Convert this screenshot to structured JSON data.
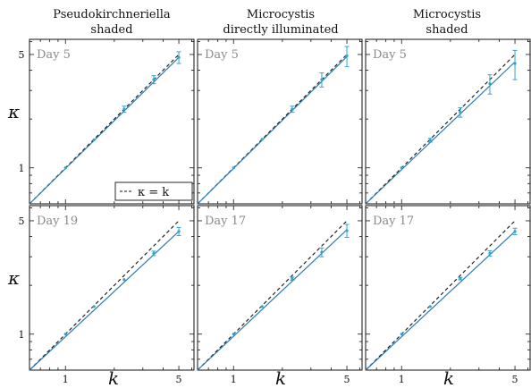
{
  "figure": {
    "column_titles": [
      [
        "Pseudokirchneriella",
        "shaded"
      ],
      [
        "Microcystis",
        "directly illuminated"
      ],
      [
        "Microcystis",
        "shaded"
      ]
    ],
    "xlabel": "k",
    "ylabel": "κ",
    "legend": {
      "label": "κ = k"
    }
  },
  "colors": {
    "fit_line": "#2a7ab5",
    "data_points": "#35a3cf",
    "reference_line": "#111111",
    "day_label": "#8a8a8a"
  },
  "chart_data": [
    {
      "type": "line",
      "panel": "top-left",
      "day_label": "Day 5",
      "x_scale": "log",
      "y_scale": "log",
      "xlim": [
        0.6,
        6.2
      ],
      "ylim": [
        0.6,
        6.2
      ],
      "xticks": [
        1,
        5
      ],
      "yticks": [
        1,
        5
      ],
      "reference_line": {
        "label": "κ = k",
        "x": [
          0.6,
          5
        ],
        "y": [
          0.6,
          5
        ]
      },
      "fit_line": {
        "x": [
          0.6,
          5
        ],
        "y": [
          0.6,
          4.8
        ]
      },
      "points": [
        {
          "x": 1,
          "y": 1.0,
          "err": 0.01
        },
        {
          "x": 1.5,
          "y": 1.49,
          "err": 0.02
        },
        {
          "x": 2.3,
          "y": 2.3,
          "err": 0.1
        },
        {
          "x": 3.5,
          "y": 3.5,
          "err": 0.2
        },
        {
          "x": 5,
          "y": 4.8,
          "err": 0.4
        }
      ],
      "legend_position": "bottom-right"
    },
    {
      "type": "line",
      "panel": "top-middle",
      "day_label": "Day 5",
      "x_scale": "log",
      "y_scale": "log",
      "xlim": [
        0.6,
        6.2
      ],
      "ylim": [
        0.6,
        6.2
      ],
      "xticks": [
        1,
        5
      ],
      "yticks": [
        1,
        5
      ],
      "reference_line": {
        "x": [
          0.6,
          5
        ],
        "y": [
          0.6,
          5
        ]
      },
      "fit_line": {
        "x": [
          0.6,
          5
        ],
        "y": [
          0.6,
          4.85
        ]
      },
      "points": [
        {
          "x": 1,
          "y": 1.0,
          "err": 0.01
        },
        {
          "x": 1.5,
          "y": 1.5,
          "err": 0.02
        },
        {
          "x": 2.3,
          "y": 2.3,
          "err": 0.1
        },
        {
          "x": 3.5,
          "y": 3.5,
          "err": 0.35
        },
        {
          "x": 5,
          "y": 4.9,
          "err": 0.7
        }
      ]
    },
    {
      "type": "line",
      "panel": "top-right",
      "day_label": "Day 5",
      "x_scale": "log",
      "y_scale": "log",
      "xlim": [
        0.6,
        6.2
      ],
      "ylim": [
        0.6,
        6.2
      ],
      "xticks": [
        1,
        5
      ],
      "yticks": [
        1,
        5
      ],
      "reference_line": {
        "x": [
          0.6,
          5
        ],
        "y": [
          0.6,
          5
        ]
      },
      "fit_line": {
        "x": [
          0.6,
          5
        ],
        "y": [
          0.6,
          4.5
        ]
      },
      "points": [
        {
          "x": 1,
          "y": 1.0,
          "err": 0.01
        },
        {
          "x": 1.5,
          "y": 1.48,
          "err": 0.04
        },
        {
          "x": 2.3,
          "y": 2.2,
          "err": 0.15
        },
        {
          "x": 3.5,
          "y": 3.3,
          "err": 0.45
        },
        {
          "x": 5,
          "y": 4.4,
          "err": 0.9
        }
      ]
    },
    {
      "type": "line",
      "panel": "bottom-left",
      "day_label": "Day 19",
      "x_scale": "log",
      "y_scale": "log",
      "xlim": [
        0.6,
        6.2
      ],
      "ylim": [
        0.6,
        6.2
      ],
      "xticks": [
        1,
        5
      ],
      "yticks": [
        1,
        5
      ],
      "reference_line": {
        "x": [
          0.6,
          5
        ],
        "y": [
          0.6,
          5
        ]
      },
      "fit_line": {
        "x": [
          0.6,
          5
        ],
        "y": [
          0.6,
          4.3
        ]
      },
      "points": [
        {
          "x": 1,
          "y": 1.0,
          "err": 0.01
        },
        {
          "x": 1.5,
          "y": 1.48,
          "err": 0.02
        },
        {
          "x": 2.3,
          "y": 2.17,
          "err": 0.03
        },
        {
          "x": 3.5,
          "y": 3.15,
          "err": 0.1
        },
        {
          "x": 5,
          "y": 4.3,
          "err": 0.25
        }
      ]
    },
    {
      "type": "line",
      "panel": "bottom-middle",
      "day_label": "Day 17",
      "x_scale": "log",
      "y_scale": "log",
      "xlim": [
        0.6,
        6.2
      ],
      "ylim": [
        0.6,
        6.2
      ],
      "xticks": [
        1,
        5
      ],
      "yticks": [
        1,
        5
      ],
      "reference_line": {
        "x": [
          0.6,
          5
        ],
        "y": [
          0.6,
          5
        ]
      },
      "fit_line": {
        "x": [
          0.6,
          5
        ],
        "y": [
          0.6,
          4.4
        ]
      },
      "points": [
        {
          "x": 1,
          "y": 1.0,
          "err": 0.01
        },
        {
          "x": 1.5,
          "y": 1.48,
          "err": 0.02
        },
        {
          "x": 2.3,
          "y": 2.2,
          "err": 0.05
        },
        {
          "x": 3.5,
          "y": 3.2,
          "err": 0.2
        },
        {
          "x": 5,
          "y": 4.35,
          "err": 0.4
        }
      ]
    },
    {
      "type": "line",
      "panel": "bottom-right",
      "day_label": "Day 17",
      "x_scale": "log",
      "y_scale": "log",
      "xlim": [
        0.6,
        6.2
      ],
      "ylim": [
        0.6,
        6.2
      ],
      "xticks": [
        1,
        5
      ],
      "yticks": [
        1,
        5
      ],
      "reference_line": {
        "x": [
          0.6,
          5
        ],
        "y": [
          0.6,
          5
        ]
      },
      "fit_line": {
        "x": [
          0.6,
          5
        ],
        "y": [
          0.6,
          4.3
        ]
      },
      "points": [
        {
          "x": 1,
          "y": 1.0,
          "err": 0.01
        },
        {
          "x": 1.5,
          "y": 1.48,
          "err": 0.02
        },
        {
          "x": 2.3,
          "y": 2.2,
          "err": 0.04
        },
        {
          "x": 3.5,
          "y": 3.15,
          "err": 0.12
        },
        {
          "x": 5,
          "y": 4.3,
          "err": 0.2
        }
      ]
    }
  ]
}
